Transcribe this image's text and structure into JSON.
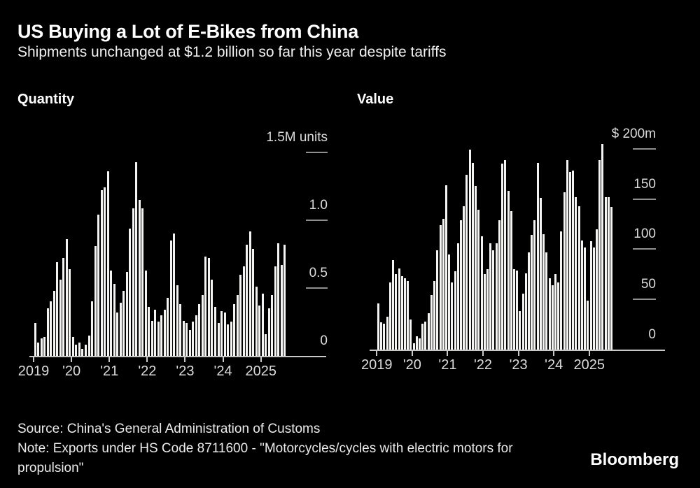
{
  "header": {
    "title": "US Buying a Lot of E-Bikes from China",
    "subtitle": "Shipments unchanged at $1.2 billion so far this year despite tariffs"
  },
  "panels": {
    "left_title": "Quantity",
    "right_title": "Value"
  },
  "footer": {
    "source": "Source: China's General Administration of Customs",
    "note": "Note: Exports under HS Code 8711600 - \"Motorcycles/cycles with electric motors for propulsion\"",
    "brand": "Bloomberg"
  },
  "colors": {
    "background": "#000000",
    "bar": "#f4f4f2",
    "axis": "#c8c8c8",
    "tick_dash": "#8f8f8f",
    "text": "#ffffff",
    "axis_text": "#dcdcdc"
  },
  "chart_data": [
    {
      "type": "bar",
      "title": "Quantity",
      "unit": "M units",
      "frequency": "monthly",
      "start_month": "2019-01",
      "end_month": "2025-08",
      "ylim": [
        0,
        1.5
      ],
      "grid": false,
      "y_axis_side": "right",
      "y_ticks": [
        {
          "value": 1.5,
          "label": "1.5M units"
        },
        {
          "value": 1.0,
          "label": "1.0"
        },
        {
          "value": 0.5,
          "label": "0.5"
        },
        {
          "value": 0,
          "label": "0"
        }
      ],
      "x_tick_labels": [
        "2019",
        "'20",
        "'21",
        "'22",
        "'23",
        "'24",
        "2025"
      ],
      "values": [
        0.24,
        0.1,
        0.13,
        0.14,
        0.35,
        0.4,
        0.48,
        0.69,
        0.56,
        0.72,
        0.86,
        0.64,
        0.14,
        0.08,
        0.1,
        0.05,
        0.08,
        0.15,
        0.4,
        0.81,
        1.04,
        1.22,
        1.24,
        1.36,
        0.63,
        0.53,
        0.32,
        0.39,
        0.48,
        0.62,
        0.94,
        1.09,
        1.43,
        1.15,
        1.09,
        0.63,
        0.36,
        0.26,
        0.34,
        0.25,
        0.3,
        0.34,
        0.43,
        0.85,
        0.9,
        0.52,
        0.38,
        0.26,
        0.24,
        0.19,
        0.25,
        0.3,
        0.38,
        0.45,
        0.73,
        0.72,
        0.56,
        0.36,
        0.24,
        0.33,
        0.32,
        0.23,
        0.25,
        0.38,
        0.45,
        0.6,
        0.66,
        0.82,
        0.92,
        0.79,
        0.51,
        0.37,
        0.46,
        0.16,
        0.35,
        0.45,
        0.66,
        0.83,
        0.67,
        0.82
      ]
    },
    {
      "type": "bar",
      "title": "Value",
      "unit": "$m",
      "frequency": "monthly",
      "start_month": "2019-01",
      "end_month": "2025-08",
      "ylim": [
        0,
        200
      ],
      "grid": false,
      "y_axis_side": "right",
      "y_ticks": [
        {
          "value": 200,
          "label": "$ 200m"
        },
        {
          "value": 150,
          "label": "150"
        },
        {
          "value": 100,
          "label": "100"
        },
        {
          "value": 50,
          "label": "50"
        },
        {
          "value": 0,
          "label": "0"
        }
      ],
      "x_tick_labels": [
        "2019",
        "'20",
        "'21",
        "'22",
        "'23",
        "'24",
        "2025"
      ],
      "values": [
        46,
        27,
        26,
        33,
        67,
        89,
        75,
        81,
        73,
        71,
        68,
        30,
        6,
        13,
        11,
        26,
        28,
        36,
        54,
        68,
        99,
        124,
        130,
        164,
        95,
        67,
        78,
        106,
        129,
        143,
        174,
        199,
        186,
        163,
        139,
        113,
        75,
        80,
        106,
        99,
        106,
        129,
        185,
        189,
        158,
        138,
        80,
        79,
        38,
        56,
        76,
        97,
        114,
        129,
        186,
        151,
        115,
        97,
        71,
        64,
        75,
        67,
        118,
        157,
        189,
        177,
        178,
        152,
        143,
        109,
        102,
        49,
        108,
        102,
        120,
        189,
        205,
        152,
        152,
        142
      ]
    }
  ]
}
